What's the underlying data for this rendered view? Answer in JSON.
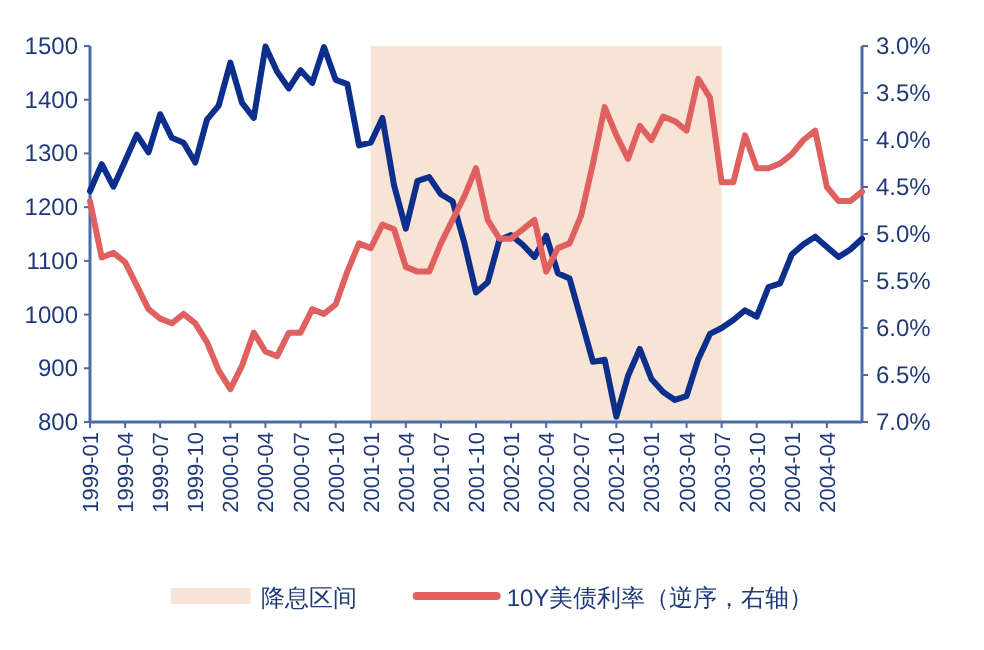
{
  "chart_data": {
    "type": "line",
    "categories": [
      "1999-01",
      null,
      null,
      "1999-04",
      null,
      null,
      "1999-07",
      null,
      null,
      "1999-10",
      null,
      null,
      "2000-01",
      null,
      null,
      "2000-04",
      null,
      null,
      "2000-07",
      null,
      null,
      "2000-10",
      null,
      null,
      "2001-01",
      null,
      null,
      "2001-04",
      null,
      null,
      "2001-07",
      null,
      null,
      "2001-10",
      null,
      null,
      "2002-01",
      null,
      null,
      "2002-04",
      null,
      null,
      "2002-07",
      null,
      null,
      "2002-10",
      null,
      null,
      "2003-01",
      null,
      null,
      "2003-04",
      null,
      null,
      "2003-07",
      null,
      null,
      "2003-10",
      null,
      null,
      "2004-01",
      null,
      null,
      "2004-04",
      null,
      null,
      null
    ],
    "series": [
      {
        "color": "#0d2f8c",
        "values": [
          1230,
          1280,
          1238,
          1286,
          1335,
          1302,
          1373,
          1329,
          1320,
          1283,
          1363,
          1389,
          1469,
          1394,
          1366,
          1499,
          1452,
          1421,
          1455,
          1431,
          1498,
          1437,
          1429,
          1315,
          1320,
          1366,
          1240,
          1160,
          1249,
          1256,
          1224,
          1211,
          1134,
          1041,
          1060,
          1139,
          1148,
          1130,
          1107,
          1147,
          1077,
          1067,
          990,
          912,
          916,
          810,
          886,
          936,
          880,
          856,
          841,
          848,
          917,
          964,
          975,
          990,
          1008,
          996,
          1051,
          1058,
          1112,
          1131,
          1145,
          1126,
          1107,
          1121,
          1141
        ]
      },
      {
        "name": "10Y美债利率（逆序，右轴）",
        "color": "#e06060",
        "axis": "y2",
        "values": [
          4.65,
          5.25,
          5.2,
          5.3,
          5.55,
          5.8,
          5.9,
          5.95,
          5.85,
          5.95,
          6.15,
          6.45,
          6.65,
          6.4,
          6.05,
          6.25,
          6.3,
          6.05,
          6.05,
          5.8,
          5.85,
          5.75,
          5.4,
          5.1,
          5.15,
          4.9,
          4.95,
          5.35,
          5.4,
          5.4,
          5.1,
          4.85,
          4.6,
          4.3,
          4.85,
          5.05,
          5.05,
          4.95,
          4.85,
          5.4,
          5.15,
          5.1,
          4.8,
          4.25,
          3.65,
          3.95,
          4.2,
          3.85,
          4.0,
          3.75,
          3.8,
          3.9,
          3.35,
          3.55,
          4.45,
          4.45,
          3.95,
          4.3,
          4.3,
          4.25,
          4.15,
          4.0,
          3.9,
          4.5,
          4.65,
          4.65,
          4.55
        ]
      }
    ],
    "ylim": [
      800,
      1500
    ],
    "yticks": [
      800,
      900,
      1000,
      1100,
      1200,
      1300,
      1400,
      1500
    ],
    "y2lim": [
      7,
      3
    ],
    "y2ticks": [
      {
        "value": 3,
        "label": "3.0%"
      },
      {
        "value": 3.5,
        "label": "3.5%"
      },
      {
        "value": 4,
        "label": "4.0%"
      },
      {
        "value": 4.5,
        "label": "4.5%"
      },
      {
        "value": 5,
        "label": "5.0%"
      },
      {
        "value": 5.5,
        "label": "5.5%"
      },
      {
        "value": 6,
        "label": "6.0%"
      },
      {
        "value": 6.5,
        "label": "6.5%"
      },
      {
        "value": 7,
        "label": "7.0%"
      }
    ],
    "bands": [
      {
        "axis": "x",
        "from": "2001-01",
        "to": "2003-07",
        "label": "降息区间",
        "color": "#f8e4d4"
      }
    ],
    "grid": false,
    "legend": "bottom",
    "marker": "none",
    "line_style": "solid"
  }
}
